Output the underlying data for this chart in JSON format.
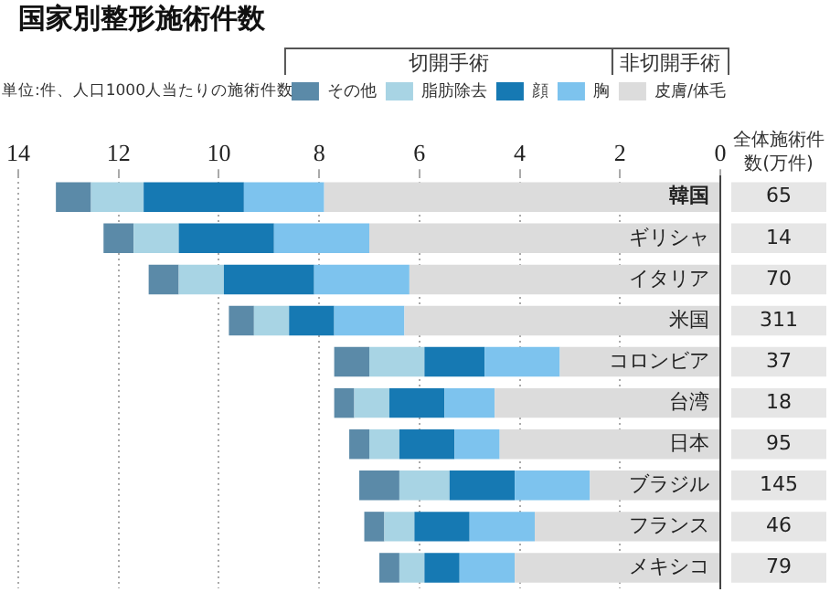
{
  "chart_data": {
    "type": "bar",
    "orientation": "horizontal",
    "stacked": true,
    "title": "国家別整形施術件数",
    "subtitle": "単位:件、人口1000人当たりの施術件数",
    "categories": [
      "韓国",
      "ギリシャ",
      "イタリア",
      "米国",
      "コロンビア",
      "台湾",
      "日本",
      "ブラジル",
      "フランス",
      "メキシコ"
    ],
    "series": [
      {
        "name": "皮膚/体毛",
        "color": "#dcdcdc",
        "values": [
          7.9,
          7.0,
          6.2,
          6.3,
          3.2,
          4.5,
          4.4,
          2.6,
          3.7,
          4.1
        ]
      },
      {
        "name": "胸",
        "color": "#7dc3ee",
        "values": [
          1.6,
          1.9,
          1.9,
          1.4,
          1.5,
          1.0,
          0.9,
          1.5,
          1.3,
          1.1
        ]
      },
      {
        "name": "顔",
        "color": "#1679b3",
        "values": [
          2.0,
          1.9,
          1.8,
          0.9,
          1.2,
          1.1,
          1.1,
          1.3,
          1.1,
          0.7
        ]
      },
      {
        "name": "脂肪除去",
        "color": "#a8d4e4",
        "values": [
          1.05,
          0.9,
          0.9,
          0.7,
          1.1,
          0.7,
          0.6,
          1.0,
          0.6,
          0.5
        ]
      },
      {
        "name": "その他",
        "color": "#5b8aa8",
        "values": [
          0.7,
          0.6,
          0.6,
          0.5,
          0.7,
          0.4,
          0.4,
          0.8,
          0.4,
          0.4
        ]
      }
    ],
    "xlim": [
      14,
      0
    ],
    "xticks": [
      14,
      12,
      10,
      8,
      6,
      4,
      2,
      0
    ],
    "grid": "x",
    "legend": "top right",
    "annotations": [
      "切開手術",
      "非切開手術",
      "全体施術件数(万件)",
      "65",
      "14",
      "70",
      "311",
      "37",
      "18",
      "95",
      "145",
      "46",
      "79"
    ]
  }
}
